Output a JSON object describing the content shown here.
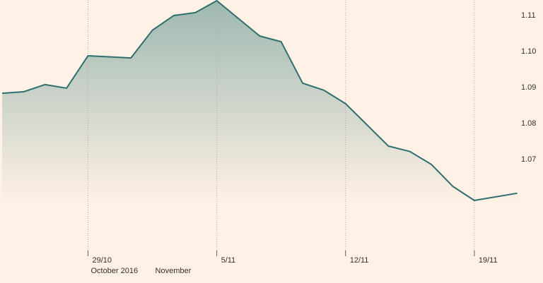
{
  "chart_data": {
    "type": "area",
    "x": [
      0,
      1,
      2,
      3,
      4,
      6,
      7,
      8,
      9,
      10,
      12,
      13,
      14,
      15,
      16,
      18,
      19,
      20,
      21,
      22,
      24
    ],
    "values": [
      1.0884,
      1.0888,
      1.0908,
      1.0898,
      1.0988,
      1.0982,
      1.1059,
      1.11,
      1.1108,
      1.1141,
      1.1043,
      1.1027,
      1.0912,
      1.0892,
      1.0855,
      1.0737,
      1.0722,
      1.0686,
      1.0625,
      1.0586,
      1.0606
    ],
    "color": "#2e6f6e",
    "fill_top": "#9db8b0",
    "xlim": [
      -0.1,
      25.2
    ],
    "xticks": [
      {
        "value": 4,
        "label": "29/10"
      },
      {
        "value": 10,
        "label": "5/11"
      },
      {
        "value": 16,
        "label": "12/11"
      },
      {
        "value": 22,
        "label": "19/11"
      }
    ],
    "x_group_labels": [
      {
        "value": 4,
        "label": "October 2016"
      },
      {
        "value": 7,
        "label": "November"
      }
    ],
    "ylim": [
      1.0437,
      1.1143
    ],
    "yticks": [
      1.07,
      1.08,
      1.09,
      {
        "value": 1.1,
        "label": "1.10"
      },
      1.11
    ],
    "grid": true
  }
}
